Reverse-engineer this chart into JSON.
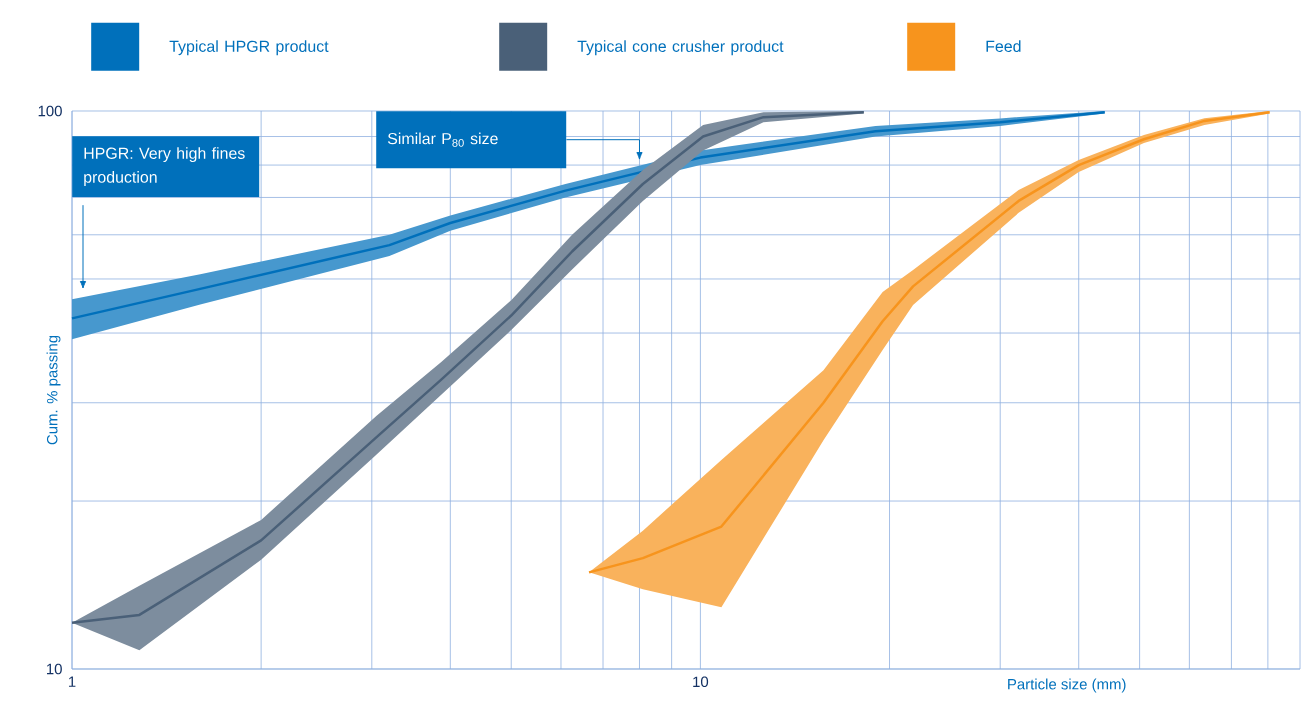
{
  "chart_data": {
    "type": "line",
    "xlabel": "Particle size (mm)",
    "ylabel": "Cum. % passing",
    "log": "xy",
    "grid": true,
    "legend": "top",
    "xlim": [
      1,
      90
    ],
    "ylim": [
      10,
      100
    ],
    "xticks": [
      1,
      {
        "value": 2,
        "label": null
      },
      {
        "value": 3,
        "label": null
      },
      {
        "value": 4,
        "label": null
      },
      {
        "value": 5,
        "label": null
      },
      {
        "value": 6,
        "label": null
      },
      {
        "value": 7,
        "label": null
      },
      {
        "value": 8,
        "label": null
      },
      {
        "value": 9,
        "label": null
      },
      10,
      {
        "value": 20,
        "label": null
      },
      {
        "value": 30,
        "label": null
      },
      {
        "value": 40,
        "label": null
      },
      {
        "value": 50,
        "label": null
      },
      {
        "value": 60,
        "label": null
      },
      {
        "value": 70,
        "label": null
      },
      {
        "value": 80,
        "label": null
      },
      {
        "value": 90,
        "label": null
      }
    ],
    "yticks": [
      10,
      {
        "value": 20,
        "label": null
      },
      {
        "value": 30,
        "label": null
      },
      {
        "value": 40,
        "label": null
      },
      {
        "value": 50,
        "label": null
      },
      {
        "value": 60,
        "label": null
      },
      {
        "value": 70,
        "label": null
      },
      {
        "value": 80,
        "label": null
      },
      {
        "value": 90,
        "label": null
      },
      100
    ],
    "series": [
      {
        "name": "Typical HPGR product",
        "color": "#0070bb",
        "x": [
          1,
          1.6,
          3.2,
          4,
          6.1,
          10,
          19,
          30,
          44
        ],
        "values": [
          42.5,
          48,
          57.5,
          63,
          72,
          82.5,
          92,
          95.5,
          99.5
        ],
        "lower": [
          39,
          45,
          55,
          61,
          70,
          80,
          90,
          94,
          99
        ],
        "upper": [
          46,
          51,
          60,
          65,
          74,
          85,
          94,
          97,
          100
        ]
      },
      {
        "name": "Typical cone crusher product",
        "color": "#4a6078",
        "x": [
          1,
          1.28,
          2,
          3.05,
          3.87,
          5,
          6.25,
          8.1,
          10.1,
          12.6,
          18.2
        ],
        "values": [
          12.1,
          12.5,
          17,
          26,
          33,
          43,
          56,
          74,
          90,
          97.5,
          99.5
        ],
        "lower": [
          12.1,
          10.8,
          15.7,
          24.2,
          31,
          40.5,
          52,
          69,
          85,
          95.5,
          99
        ],
        "upper": [
          12.1,
          14.1,
          18.5,
          28.4,
          35.5,
          45.8,
          60,
          78.4,
          94.4,
          99.5,
          100
        ]
      },
      {
        "name": "Feed",
        "color": "#f7941d",
        "x": [
          6.65,
          8.1,
          10.8,
          15.7,
          19.5,
          21.8,
          32.1,
          40,
          50.8,
          63.4,
          80.5
        ],
        "values": [
          14.9,
          15.8,
          18,
          30,
          42,
          48.5,
          69,
          80,
          89,
          96,
          99.5
        ],
        "lower": [
          14.9,
          13.9,
          12.9,
          25.7,
          37.3,
          44.9,
          65.7,
          77.8,
          87.6,
          94.4,
          99
        ],
        "upper": [
          14.9,
          17.7,
          23.7,
          34.3,
          47.4,
          51.9,
          72.2,
          81.7,
          90.6,
          97.1,
          100
        ]
      }
    ],
    "annotations": [
      "HPGR: Very high fines production",
      "Similar P$_{80}$ size"
    ]
  }
}
